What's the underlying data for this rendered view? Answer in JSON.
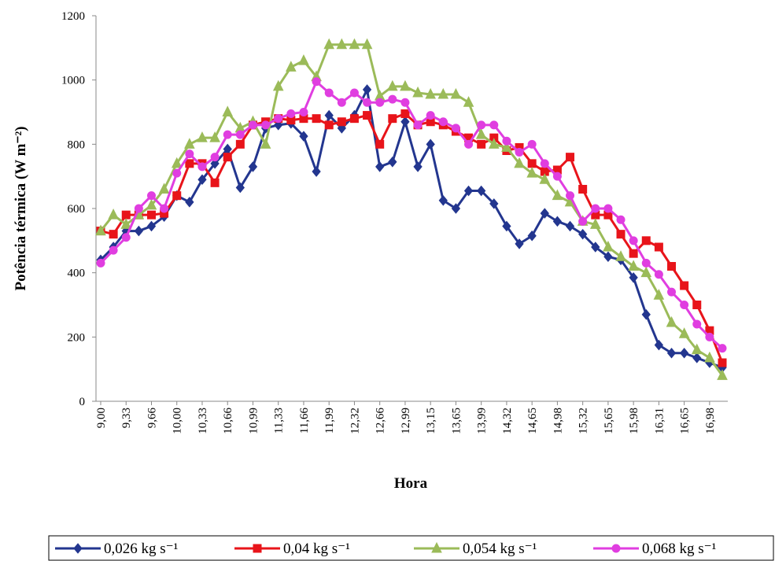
{
  "chart_data": {
    "type": "line",
    "x_label": "Hora",
    "y_label": "Potência  térmica (W m⁻²)",
    "categories": [
      "9,00",
      null,
      "9,33",
      null,
      "9,66",
      null,
      "10,00",
      null,
      "10,33",
      null,
      "10,66",
      null,
      "10,99",
      null,
      "11,33",
      null,
      "11,66",
      null,
      "11,99",
      null,
      "12,32",
      null,
      "12,66",
      null,
      "12,99",
      null,
      "13,15",
      null,
      "13,65",
      null,
      "13,99",
      null,
      "14,32",
      null,
      "14,65",
      null,
      "14,98",
      null,
      "15,32",
      null,
      "15,65",
      null,
      "15,98",
      null,
      "16,31",
      null,
      "16,65",
      null,
      "16,98",
      null
    ],
    "ylim": [
      0,
      1200
    ],
    "yticks": [
      0,
      200,
      400,
      600,
      800,
      1000,
      1200
    ],
    "legend": "bottom",
    "series": [
      {
        "name": "0,026 kg s⁻¹",
        "color": "#23368f",
        "marker": "diamond",
        "values": [
          440,
          480,
          530,
          530,
          545,
          575,
          640,
          620,
          690,
          740,
          785,
          665,
          730,
          850,
          860,
          865,
          825,
          715,
          890,
          850,
          890,
          970,
          730,
          745,
          870,
          730,
          800,
          625,
          600,
          655,
          655,
          615,
          545,
          490,
          515,
          585,
          560,
          545,
          520,
          480,
          450,
          440,
          385,
          270,
          175,
          150,
          150,
          135,
          120,
          105
        ]
      },
      {
        "name": "0,04 kg s⁻¹",
        "color": "#e8141a",
        "marker": "square",
        "values": [
          530,
          520,
          580,
          580,
          580,
          585,
          640,
          740,
          740,
          680,
          760,
          800,
          860,
          870,
          880,
          875,
          880,
          880,
          860,
          870,
          880,
          890,
          800,
          880,
          895,
          860,
          870,
          860,
          840,
          820,
          800,
          820,
          780,
          790,
          740,
          715,
          720,
          760,
          660,
          580,
          580,
          520,
          460,
          500,
          480,
          420,
          360,
          300,
          220,
          120
        ]
      },
      {
        "name": "0,054 kg s⁻¹",
        "color": "#9bbb59",
        "marker": "triangle",
        "values": [
          530,
          580,
          550,
          580,
          610,
          660,
          740,
          800,
          820,
          820,
          900,
          850,
          870,
          800,
          980,
          1040,
          1060,
          1010,
          1110,
          1110,
          1110,
          1110,
          950,
          980,
          980,
          960,
          955,
          955,
          955,
          930,
          830,
          800,
          790,
          740,
          710,
          690,
          640,
          620,
          560,
          550,
          480,
          450,
          420,
          400,
          330,
          245,
          210,
          160,
          135,
          80
        ]
      },
      {
        "name": "0,068 kg s⁻¹",
        "color": "#e03ee0",
        "marker": "circle",
        "values": [
          430,
          470,
          510,
          600,
          640,
          600,
          710,
          770,
          730,
          760,
          830,
          830,
          860,
          860,
          880,
          895,
          900,
          995,
          960,
          930,
          960,
          930,
          930,
          940,
          930,
          860,
          890,
          870,
          850,
          800,
          860,
          860,
          810,
          775,
          800,
          740,
          700,
          640,
          560,
          600,
          600,
          565,
          500,
          430,
          395,
          340,
          300,
          240,
          200,
          165
        ]
      }
    ]
  }
}
